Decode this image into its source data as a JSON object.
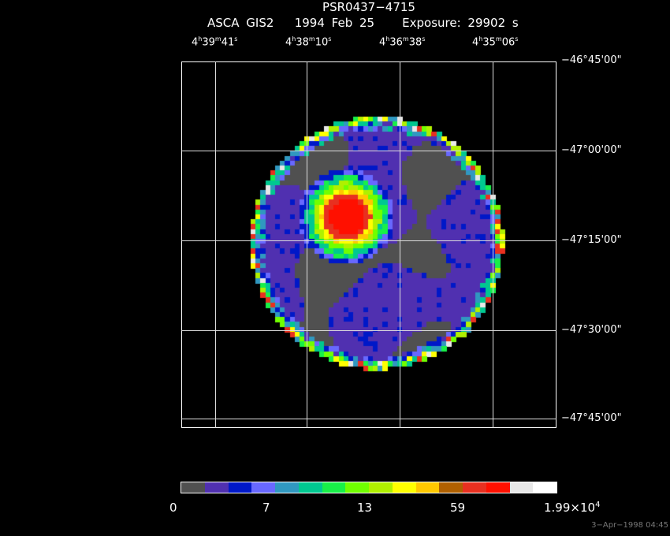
{
  "header": {
    "title": "PSR0437−4715",
    "instrument": "ASCA GIS2",
    "date": "1994 Feb 25",
    "exposure": "Exposure: 29902 s"
  },
  "ra_labels": [
    {
      "h": "4",
      "m": "39",
      "s": "41"
    },
    {
      "h": "4",
      "m": "38",
      "s": "10"
    },
    {
      "h": "4",
      "m": "36",
      "s": "38"
    },
    {
      "h": "4",
      "m": "35",
      "s": "06"
    }
  ],
  "dec_labels": [
    "−46°45'00\"",
    "−47°00'00\"",
    "−47°15'00\"",
    "−47°30'00\"",
    "−47°45'00\""
  ],
  "colorbar": {
    "colors": [
      "#505050",
      "#5030b0",
      "#0018c8",
      "#6868ff",
      "#3098c0",
      "#00c890",
      "#18f048",
      "#70ff00",
      "#b0f000",
      "#ffff00",
      "#ffc800",
      "#b06000",
      "#e83020",
      "#ff1000",
      "#e8e8e8",
      "#ffffff"
    ],
    "labels": [
      "0",
      "7",
      "13",
      "59"
    ],
    "max_mantissa": "1.99×10",
    "max_exp": "4"
  },
  "timestamp": "3−Apr−1998 04:45"
}
